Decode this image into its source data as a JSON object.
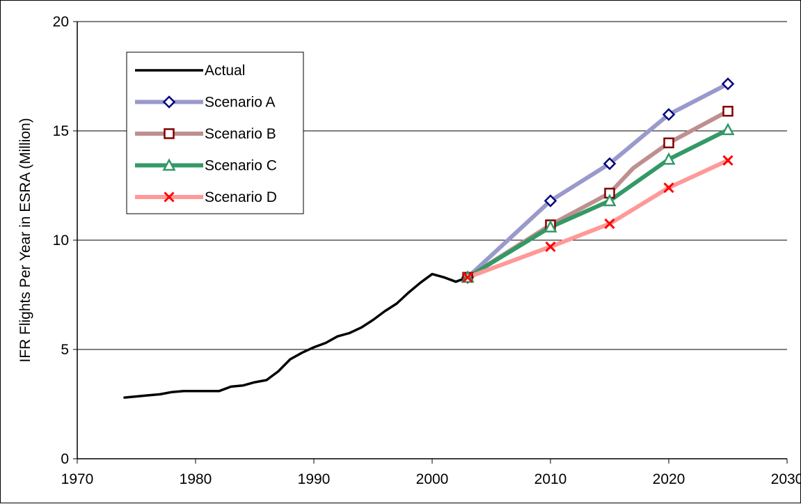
{
  "chart_data": {
    "type": "line",
    "title": "",
    "xlabel": "",
    "ylabel": "IFR Flights Per Year in ESRA (Million)",
    "xlim": [
      1970,
      2030
    ],
    "ylim": [
      0,
      20
    ],
    "x_ticks": [
      1970,
      1980,
      1990,
      2000,
      2010,
      2020,
      2030
    ],
    "y_ticks": [
      0,
      5,
      10,
      15,
      20
    ],
    "grid": "horizontal major gridlines",
    "legend_position": "top-left inside plot area",
    "series": [
      {
        "name": "Actual",
        "color": "#000000",
        "marker": "none",
        "points": [
          [
            1974,
            2.8
          ],
          [
            1975,
            2.85
          ],
          [
            1976,
            2.9
          ],
          [
            1977,
            2.95
          ],
          [
            1978,
            3.05
          ],
          [
            1979,
            3.1
          ],
          [
            1980,
            3.1
          ],
          [
            1981,
            3.1
          ],
          [
            1982,
            3.1
          ],
          [
            1983,
            3.3
          ],
          [
            1984,
            3.35
          ],
          [
            1985,
            3.5
          ],
          [
            1986,
            3.6
          ],
          [
            1987,
            4.0
          ],
          [
            1988,
            4.55
          ],
          [
            1989,
            4.85
          ],
          [
            1990,
            5.1
          ],
          [
            1991,
            5.3
          ],
          [
            1992,
            5.6
          ],
          [
            1993,
            5.75
          ],
          [
            1994,
            6.0
          ],
          [
            1995,
            6.35
          ],
          [
            1996,
            6.75
          ],
          [
            1997,
            7.1
          ],
          [
            1998,
            7.6
          ],
          [
            1999,
            8.05
          ],
          [
            2000,
            8.45
          ],
          [
            2001,
            8.3
          ],
          [
            2002,
            8.1
          ],
          [
            2003,
            8.3
          ]
        ]
      },
      {
        "name": "Scenario A",
        "color": "#9999cc",
        "marker": "diamond",
        "marker_color": "#000080",
        "points": [
          [
            2003,
            8.3
          ],
          [
            2010,
            11.8
          ],
          [
            2015,
            13.5
          ],
          [
            2020,
            15.75
          ],
          [
            2025,
            17.15
          ]
        ]
      },
      {
        "name": "Scenario B",
        "color": "#bf8f8f",
        "marker": "square",
        "marker_color": "#800000",
        "points": [
          [
            2003,
            8.3
          ],
          [
            2010,
            10.7
          ],
          [
            2015,
            12.15
          ],
          [
            2017,
            13.3
          ],
          [
            2020,
            14.45
          ],
          [
            2025,
            15.9
          ]
        ]
      },
      {
        "name": "Scenario C",
        "color": "#339966",
        "marker": "triangle",
        "marker_color": "#339966",
        "points": [
          [
            2003,
            8.3
          ],
          [
            2010,
            10.6
          ],
          [
            2015,
            11.8
          ],
          [
            2020,
            13.7
          ],
          [
            2025,
            15.05
          ]
        ]
      },
      {
        "name": "Scenario D",
        "color": "#ff9999",
        "marker": "x",
        "marker_color": "#ff0000",
        "points": [
          [
            2003,
            8.3
          ],
          [
            2010,
            9.7
          ],
          [
            2015,
            10.75
          ],
          [
            2020,
            12.4
          ],
          [
            2025,
            13.65
          ]
        ]
      }
    ]
  }
}
